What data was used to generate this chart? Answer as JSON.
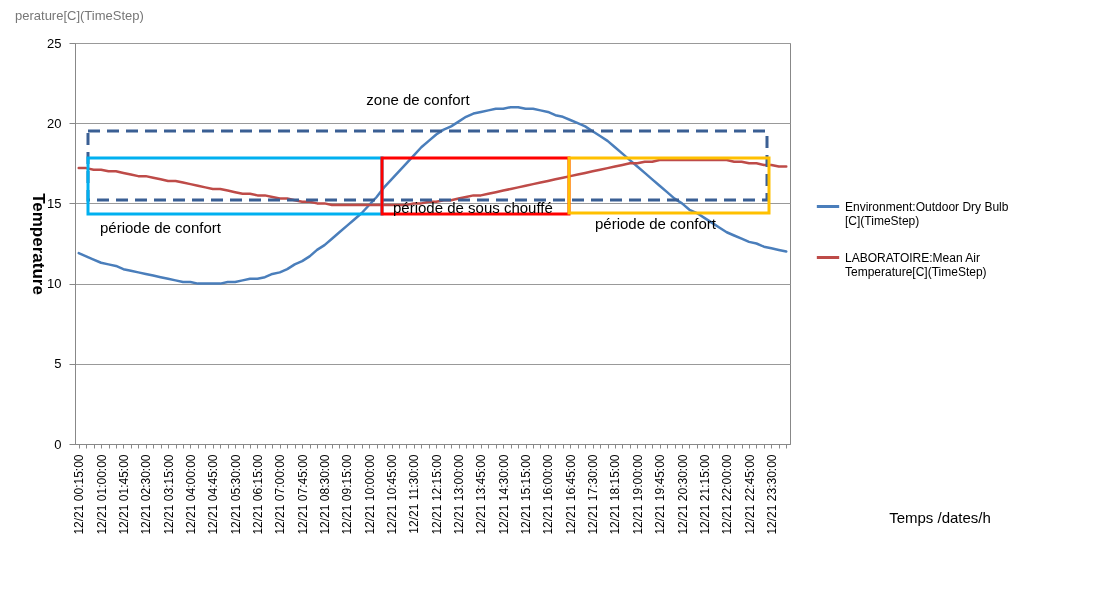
{
  "chart_data": {
    "type": "line",
    "title": "perature[C](TimeStep)",
    "ylabel": "Temperature",
    "categories": [
      "12/21 00:15:00",
      null,
      null,
      "12/21 01:00:00",
      null,
      null,
      "12/21 01:45:00",
      null,
      null,
      "12/21 02:30:00",
      null,
      null,
      "12/21 03:15:00",
      null,
      null,
      "12/21 04:00:00",
      null,
      null,
      "12/21 04:45:00",
      null,
      null,
      "12/21 05:30:00",
      null,
      null,
      "12/21 06:15:00",
      null,
      null,
      "12/21 07:00:00",
      null,
      null,
      "12/21 07:45:00",
      null,
      null,
      "12/21 08:30:00",
      null,
      null,
      "12/21 09:15:00",
      null,
      null,
      "12/21 10:00:00",
      null,
      null,
      "12/21 10:45:00",
      null,
      null,
      "12/21 11:30:00",
      null,
      null,
      "12/21 12:15:00",
      null,
      null,
      "12/21 13:00:00",
      null,
      null,
      "12/21 13:45:00",
      null,
      null,
      "12/21 14:30:00",
      null,
      null,
      "12/21 15:15:00",
      null,
      null,
      "12/21 16:00:00",
      null,
      null,
      "12/21 16:45:00",
      null,
      null,
      "12/21 17:30:00",
      null,
      null,
      "12/21 18:15:00",
      null,
      null,
      "12/21 19:00:00",
      null,
      null,
      "12/21 19:45:00",
      null,
      null,
      "12/21 20:30:00",
      null,
      null,
      "12/21 21:15:00",
      null,
      null,
      "12/21 22:00:00",
      null,
      null,
      "12/21 22:45:00",
      null,
      null,
      "12/21 23:30:00",
      null,
      null
    ],
    "series": [
      {
        "name": "Environment:Outdoor Dry Bulb [C](TimeStep)",
        "color": "#4a7ebb",
        "values": [
          11.9,
          11.7,
          11.5,
          11.3,
          11.2,
          11.1,
          10.9,
          10.8,
          10.7,
          10.6,
          10.5,
          10.4,
          10.3,
          10.2,
          10.1,
          10.1,
          10.0,
          10.0,
          10.0,
          10.0,
          10.1,
          10.1,
          10.2,
          10.3,
          10.3,
          10.4,
          10.6,
          10.7,
          10.9,
          11.2,
          11.4,
          11.7,
          12.1,
          12.4,
          12.8,
          13.2,
          13.6,
          14.0,
          14.4,
          14.9,
          15.4,
          16.0,
          16.5,
          17.0,
          17.5,
          18.0,
          18.5,
          18.9,
          19.3,
          19.6,
          19.8,
          20.1,
          20.4,
          20.6,
          20.7,
          20.8,
          20.9,
          20.9,
          21.0,
          21.0,
          20.9,
          20.9,
          20.8,
          20.7,
          20.5,
          20.4,
          20.2,
          20.0,
          19.8,
          19.5,
          19.2,
          18.9,
          18.5,
          18.1,
          17.7,
          17.3,
          16.9,
          16.5,
          16.1,
          15.7,
          15.3,
          15.0,
          14.6,
          14.4,
          14.1,
          13.8,
          13.5,
          13.2,
          13.0,
          12.8,
          12.6,
          12.5,
          12.3,
          12.2,
          12.1,
          12.0
        ]
      },
      {
        "name": "LABORATOIRE:Mean Air Temperature[C](TimeStep)",
        "color": "#be4b48",
        "values": [
          17.2,
          17.2,
          17.1,
          17.1,
          17.0,
          17.0,
          16.9,
          16.8,
          16.7,
          16.7,
          16.6,
          16.5,
          16.4,
          16.4,
          16.3,
          16.2,
          16.1,
          16.0,
          15.9,
          15.9,
          15.8,
          15.7,
          15.6,
          15.6,
          15.5,
          15.5,
          15.4,
          15.3,
          15.3,
          15.2,
          15.1,
          15.1,
          15.0,
          15.0,
          14.9,
          14.9,
          14.9,
          14.9,
          14.9,
          14.9,
          14.9,
          14.9,
          14.9,
          14.9,
          14.9,
          15.0,
          15.0,
          15.1,
          15.1,
          15.2,
          15.2,
          15.3,
          15.4,
          15.5,
          15.5,
          15.6,
          15.7,
          15.8,
          15.9,
          16.0,
          16.1,
          16.2,
          16.3,
          16.4,
          16.5,
          16.6,
          16.7,
          16.8,
          16.9,
          17.0,
          17.1,
          17.2,
          17.3,
          17.4,
          17.5,
          17.5,
          17.6,
          17.6,
          17.7,
          17.7,
          17.7,
          17.7,
          17.7,
          17.7,
          17.7,
          17.7,
          17.7,
          17.7,
          17.6,
          17.6,
          17.5,
          17.5,
          17.4,
          17.4,
          17.3,
          17.3
        ]
      }
    ],
    "annotations": [
      "zone de confort",
      "période de confort",
      "période de sous chouffé",
      "période de confort",
      "Temps /dates/h"
    ],
    "ylim": [
      0,
      25
    ],
    "yticks": [
      0,
      5,
      10,
      15,
      20,
      25
    ],
    "grid": "y",
    "legend": "right",
    "marker": "none",
    "line_style": "solid"
  }
}
